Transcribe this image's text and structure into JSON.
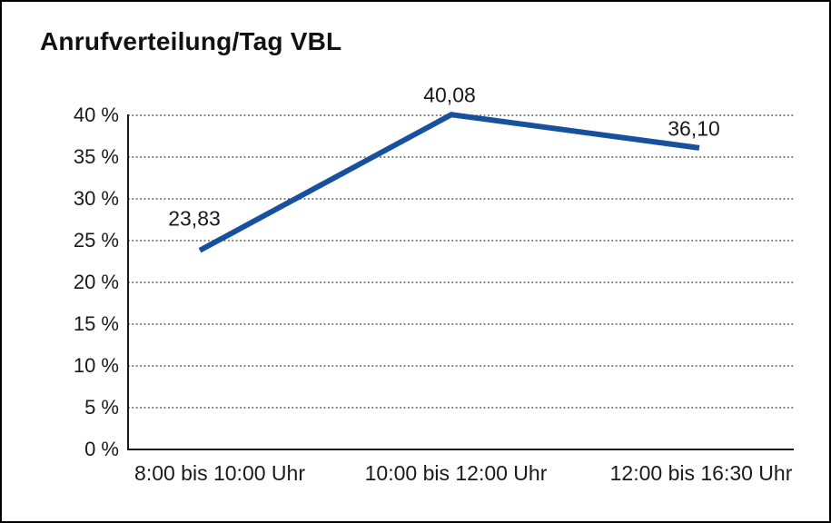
{
  "title": "Anrufverteilung/Tag VBL",
  "chart_data": {
    "type": "line",
    "title": "Anrufverteilung/Tag VBL",
    "categories": [
      "8:00 bis 10:00 Uhr",
      "10:00 bis 12:00 Uhr",
      "12:00 bis 16:30 Uhr"
    ],
    "values": [
      23.83,
      40.08,
      36.1
    ],
    "data_labels": [
      "23,83",
      "40,08",
      "36,10"
    ],
    "xlabel": "",
    "ylabel": "",
    "ylim": [
      0,
      40
    ],
    "ytick_step": 5,
    "ytick_labels": [
      "0 %",
      "5 %",
      "10 %",
      "15 %",
      "20 %",
      "25 %",
      "30 %",
      "35 %",
      "40 %"
    ],
    "grid": "horizontal-dotted",
    "legend": "none",
    "line_color": "#17519e",
    "axis_color": "#1a1a1a",
    "gridline_color": "#555555",
    "text_color": "#1a1a1a",
    "background_color": "#ffffff"
  }
}
